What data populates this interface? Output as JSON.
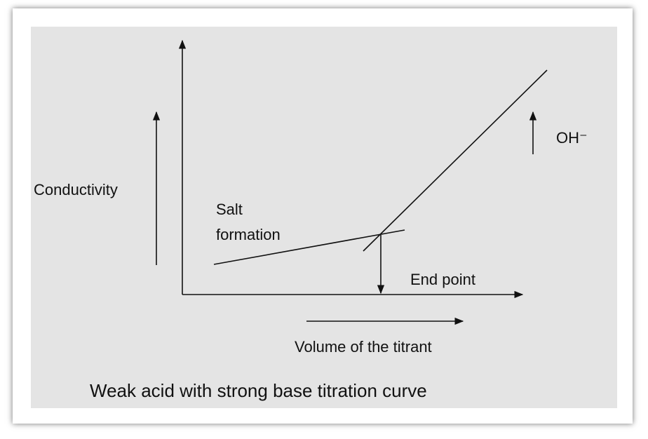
{
  "labels": {
    "y_axis": "Conductivity",
    "salt": [
      "Salt",
      "formation"
    ],
    "end_point": "End point",
    "ion": "OH⁻",
    "x_axis": "Volume of the titrant"
  },
  "caption": "Weak acid with strong base titration curve"
}
